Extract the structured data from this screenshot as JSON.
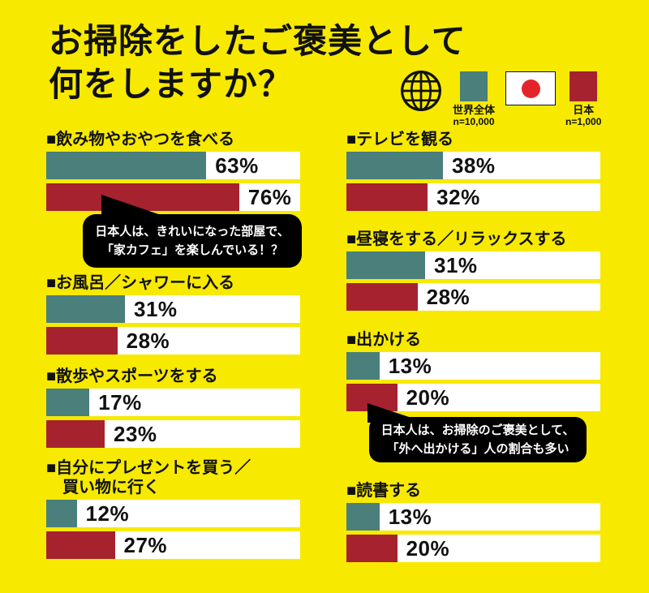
{
  "title": "お掃除をしたご褒美として\n何をしますか？",
  "legend": {
    "world": {
      "label": "世界全体",
      "n": "n=10,000",
      "icon": "globe-icon"
    },
    "japan": {
      "label": "日本",
      "n": "n=1,000",
      "icon": "japan-flag-icon"
    }
  },
  "colors": {
    "background": "#F7E900",
    "world": "#4A7F7C",
    "japan": "#A6222F",
    "flag_red": "#E4242B",
    "track": "#FFFFFF",
    "bubble": "#000000"
  },
  "chart_data": {
    "type": "bar",
    "orientation": "horizontal",
    "value_unit": "%",
    "xlim": [
      0,
      100
    ],
    "legend_position": "top-right",
    "series": [
      {
        "name": "世界全体",
        "n": "n=10,000",
        "color": "#4A7F7C"
      },
      {
        "name": "日本",
        "n": "n=1,000",
        "color": "#A6222F"
      }
    ],
    "items": [
      {
        "column": "left",
        "label": "■飲み物やおやつを食べる",
        "world": 63,
        "japan": 76,
        "world_label": "63%",
        "japan_label": "76%"
      },
      {
        "column": "left",
        "label": "■お風呂／シャワーに入る",
        "world": 31,
        "japan": 28,
        "world_label": "31%",
        "japan_label": "28%"
      },
      {
        "column": "left",
        "label": "■散歩やスポーツをする",
        "world": 17,
        "japan": 23,
        "world_label": "17%",
        "japan_label": "23%"
      },
      {
        "column": "left",
        "label": "■自分にプレゼントを買う／\n買い物に行く",
        "world": 12,
        "japan": 27,
        "world_label": "12%",
        "japan_label": "27%"
      },
      {
        "column": "right",
        "label": "■テレビを観る",
        "world": 38,
        "japan": 32,
        "world_label": "38%",
        "japan_label": "32%"
      },
      {
        "column": "right",
        "label": "■昼寝をする／リラックスする",
        "world": 31,
        "japan": 28,
        "world_label": "31%",
        "japan_label": "28%"
      },
      {
        "column": "right",
        "label": "■出かける",
        "world": 13,
        "japan": 20,
        "world_label": "13%",
        "japan_label": "20%"
      },
      {
        "column": "right",
        "label": "■読書する",
        "world": 13,
        "japan": 20,
        "world_label": "13%",
        "japan_label": "20%"
      }
    ],
    "annotations": [
      {
        "target": "飲み物やおやつを食べる（日本）",
        "text": "日本人は、きれいになった部屋で、\n「家カフェ」を楽しんでいる！？"
      },
      {
        "target": "出かける（日本）",
        "text": "日本人は、お掃除のご褒美として、\n「外へ出かける」人の割合も多い"
      }
    ]
  }
}
